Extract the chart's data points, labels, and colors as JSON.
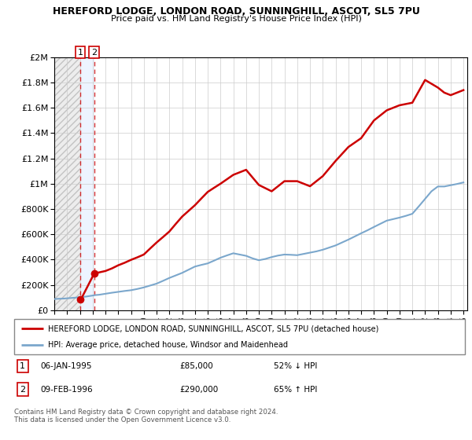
{
  "title": "HEREFORD LODGE, LONDON ROAD, SUNNINGHILL, ASCOT, SL5 7PU",
  "subtitle": "Price paid vs. HM Land Registry's House Price Index (HPI)",
  "legend_line1": "HEREFORD LODGE, LONDON ROAD, SUNNINGHILL, ASCOT, SL5 7PU (detached house)",
  "legend_line2": "HPI: Average price, detached house, Windsor and Maidenhead",
  "footnote": "Contains HM Land Registry data © Crown copyright and database right 2024.\nThis data is licensed under the Open Government Licence v3.0.",
  "annotation1_label": "1",
  "annotation1_date": "06-JAN-1995",
  "annotation1_price": "£85,000",
  "annotation1_hpi": "52% ↓ HPI",
  "annotation2_label": "2",
  "annotation2_date": "09-FEB-1996",
  "annotation2_price": "£290,000",
  "annotation2_hpi": "65% ↑ HPI",
  "price_color": "#cc0000",
  "hpi_color": "#7ba7cc",
  "hatch_color": "#aaaaaa",
  "ylim": [
    0,
    2000000
  ],
  "yticks": [
    0,
    200000,
    400000,
    600000,
    800000,
    1000000,
    1200000,
    1400000,
    1600000,
    1800000,
    2000000
  ],
  "ytick_labels": [
    "£0",
    "£200K",
    "£400K",
    "£600K",
    "£800K",
    "£1M",
    "£1.2M",
    "£1.4M",
    "£1.6M",
    "£1.8M",
    "£2M"
  ],
  "hpi_years": [
    1993.0,
    1993.25,
    1993.5,
    1993.75,
    1994.0,
    1994.25,
    1994.5,
    1994.75,
    1995.0,
    1995.25,
    1995.5,
    1995.75,
    1996.0,
    1996.25,
    1996.5,
    1996.75,
    1997.0,
    1997.5,
    1998.0,
    1998.5,
    1999.0,
    1999.5,
    2000.0,
    2000.5,
    2001.0,
    2001.5,
    2002.0,
    2002.5,
    2003.0,
    2003.5,
    2004.0,
    2004.5,
    2005.0,
    2005.5,
    2006.0,
    2006.5,
    2007.0,
    2007.5,
    2008.0,
    2008.5,
    2009.0,
    2009.5,
    2010.0,
    2010.5,
    2011.0,
    2011.5,
    2012.0,
    2012.5,
    2013.0,
    2013.5,
    2014.0,
    2014.5,
    2015.0,
    2015.5,
    2016.0,
    2016.5,
    2017.0,
    2017.5,
    2018.0,
    2018.5,
    2019.0,
    2019.5,
    2020.0,
    2020.5,
    2021.0,
    2021.5,
    2022.0,
    2022.5,
    2023.0,
    2023.5,
    2024.0,
    2024.5,
    2025.0
  ],
  "hpi_values": [
    88000,
    90000,
    91000,
    92000,
    94000,
    96000,
    98000,
    100000,
    103000,
    105000,
    108000,
    112000,
    116000,
    120000,
    122000,
    126000,
    130000,
    138000,
    145000,
    152000,
    158000,
    168000,
    180000,
    195000,
    210000,
    232000,
    255000,
    275000,
    295000,
    320000,
    345000,
    358000,
    370000,
    392000,
    415000,
    433000,
    450000,
    440000,
    430000,
    410000,
    395000,
    405000,
    420000,
    432000,
    440000,
    438000,
    435000,
    445000,
    455000,
    465000,
    478000,
    495000,
    512000,
    535000,
    558000,
    583000,
    608000,
    632000,
    658000,
    683000,
    708000,
    720000,
    732000,
    746000,
    762000,
    820000,
    880000,
    940000,
    978000,
    978000,
    988000,
    998000,
    1010000
  ],
  "price_years": [
    1995.03,
    1995.08,
    1996.12,
    1997.0,
    1997.5,
    1998.0,
    1998.5,
    1999.0,
    1999.5,
    2000.0,
    2000.5,
    2001.0,
    2001.5,
    2002.0,
    2002.5,
    2003.0,
    2003.5,
    2004.0,
    2004.5,
    2005.0,
    2005.5,
    2006.0,
    2006.5,
    2007.0,
    2007.5,
    2008.0,
    2008.5,
    2009.0,
    2009.5,
    2010.0,
    2010.5,
    2011.0,
    2011.5,
    2012.0,
    2012.5,
    2013.0,
    2013.5,
    2014.0,
    2014.5,
    2015.0,
    2015.5,
    2016.0,
    2016.5,
    2017.0,
    2017.5,
    2018.0,
    2018.5,
    2019.0,
    2019.5,
    2020.0,
    2020.5,
    2021.0,
    2021.5,
    2022.0,
    2022.5,
    2023.0,
    2023.5,
    2024.0,
    2024.5,
    2025.0
  ],
  "price_values": [
    85000,
    85000,
    290000,
    310000,
    330000,
    355000,
    375000,
    398000,
    418000,
    440000,
    488000,
    535000,
    578000,
    622000,
    682000,
    740000,
    785000,
    830000,
    883000,
    935000,
    968000,
    1000000,
    1035000,
    1070000,
    1090000,
    1110000,
    1050000,
    990000,
    965000,
    940000,
    980000,
    1020000,
    1020000,
    1020000,
    1000000,
    980000,
    1020000,
    1060000,
    1120000,
    1180000,
    1235000,
    1290000,
    1325000,
    1360000,
    1430000,
    1500000,
    1540000,
    1580000,
    1600000,
    1620000,
    1630000,
    1640000,
    1730000,
    1820000,
    1790000,
    1760000,
    1720000,
    1700000,
    1720000,
    1740000
  ],
  "sale1_year": 1995.03,
  "sale1_value": 85000,
  "sale2_year": 1996.12,
  "sale2_value": 290000,
  "xmin": 1993.0,
  "xmax": 2025.3,
  "xticks": [
    1993,
    1994,
    1995,
    1996,
    1997,
    1998,
    1999,
    2000,
    2001,
    2002,
    2003,
    2004,
    2005,
    2006,
    2007,
    2008,
    2009,
    2010,
    2011,
    2012,
    2013,
    2014,
    2015,
    2016,
    2017,
    2018,
    2019,
    2020,
    2021,
    2022,
    2023,
    2024,
    2025
  ]
}
